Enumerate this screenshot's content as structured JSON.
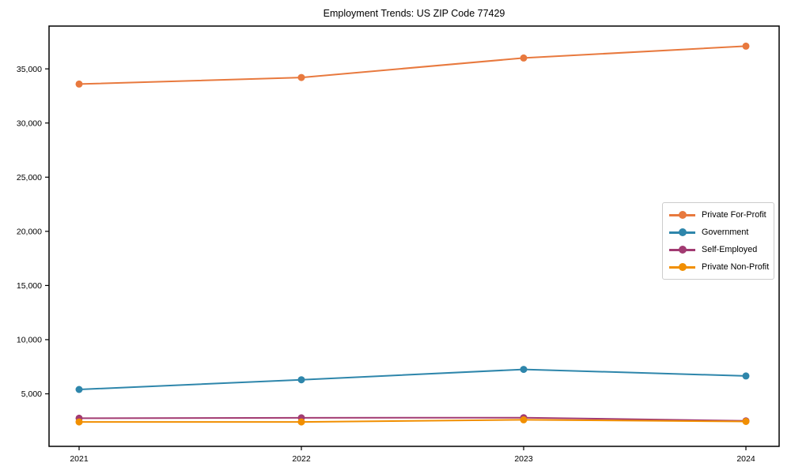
{
  "chart_data": {
    "type": "line",
    "title": "Employment Trends: US ZIP Code 77429",
    "xlabel": "",
    "ylabel": "",
    "x": [
      2021,
      2022,
      2023,
      2024
    ],
    "x_tick_labels": [
      "2021",
      "2022",
      "2023",
      "2024"
    ],
    "y_ticks": [
      5000,
      10000,
      15000,
      20000,
      25000,
      30000,
      35000
    ],
    "y_tick_labels": [
      "5,000",
      "10,000",
      "15,000",
      "20,000",
      "25,000",
      "30,000",
      "35,000"
    ],
    "ylim": [
      150,
      38950
    ],
    "grid": false,
    "legend_position": "center-right",
    "marker": "circle",
    "axis_color": "#000000",
    "legend_border_color": "#cccccc",
    "series": [
      {
        "name": "Private For-Profit",
        "color": "#e8793e",
        "values": [
          33600,
          34200,
          36000,
          37100
        ]
      },
      {
        "name": "Government",
        "color": "#2e86ab",
        "values": [
          5400,
          6300,
          7250,
          6650
        ]
      },
      {
        "name": "Self-Employed",
        "color": "#a23b72",
        "values": [
          2750,
          2780,
          2800,
          2500
        ]
      },
      {
        "name": "Private Non-Profit",
        "color": "#f18f01",
        "values": [
          2400,
          2400,
          2600,
          2450
        ]
      }
    ]
  }
}
